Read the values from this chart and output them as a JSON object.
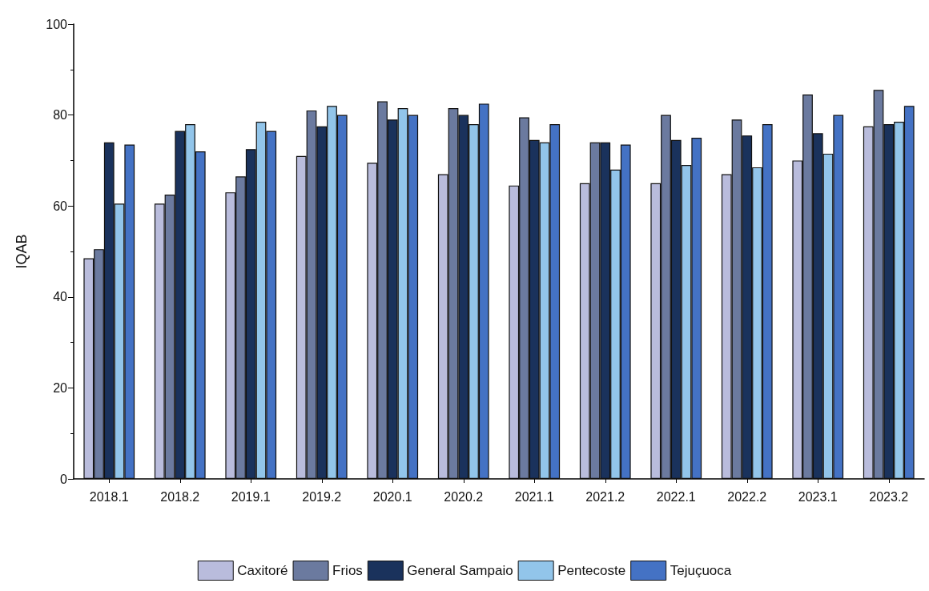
{
  "chart_data": {
    "type": "bar",
    "ylabel": "IQAB",
    "categories": [
      "2018.1",
      "2018.2",
      "2019.1",
      "2019.2",
      "2020.1",
      "2020.2",
      "2021.1",
      "2021.2",
      "2022.1",
      "2022.2",
      "2023.1",
      "2023.2"
    ],
    "series": [
      {
        "name": "Caxitoré",
        "color": "#b9bcdc",
        "values": [
          48.5,
          60.5,
          63,
          71,
          69.5,
          67,
          64.5,
          65,
          65,
          67,
          70,
          77.5
        ]
      },
      {
        "name": "Frios",
        "color": "#6b7a9f",
        "values": [
          50.5,
          62.5,
          66.5,
          81,
          83,
          81.5,
          79.5,
          74,
          80,
          79,
          84.5,
          85.5
        ]
      },
      {
        "name": "General Sampaio",
        "color": "#1a325c",
        "values": [
          74,
          76.5,
          72.5,
          77.5,
          79,
          80,
          74.5,
          74,
          74.5,
          75.5,
          76,
          78
        ]
      },
      {
        "name": "Pentecoste",
        "color": "#92c5ea",
        "values": [
          60.5,
          78,
          78.5,
          82,
          81.5,
          78,
          74,
          68,
          69,
          68.5,
          71.5,
          78.5
        ]
      },
      {
        "name": "Tejuçuoca",
        "color": "#4472c4",
        "values": [
          73.5,
          72,
          76.5,
          80,
          80,
          82.5,
          78,
          73.5,
          75,
          78,
          80,
          82
        ]
      }
    ],
    "ylim": [
      0,
      100
    ],
    "yticks": [
      0,
      20,
      40,
      60,
      80,
      100
    ],
    "grid": false,
    "legend": "bottom"
  }
}
